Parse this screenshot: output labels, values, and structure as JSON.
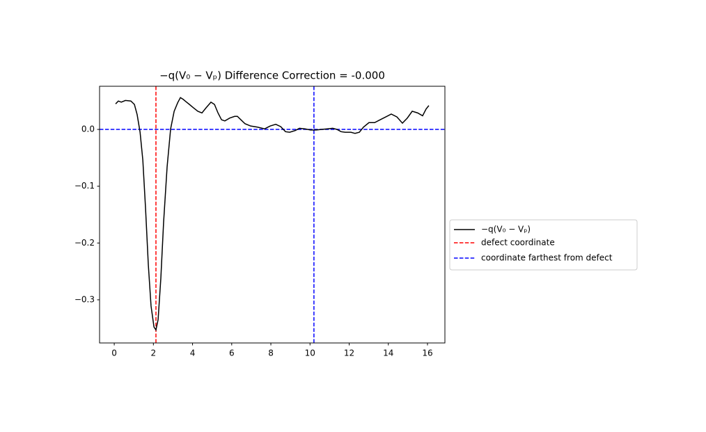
{
  "chart_data": {
    "type": "line",
    "title": "−q(V₀ − Vₚ) Difference Correction = -0.000",
    "x": [
      0.07,
      0.21,
      0.36,
      0.57,
      0.85,
      1.03,
      1.17,
      1.32,
      1.46,
      1.6,
      1.74,
      1.88,
      2.03,
      2.13,
      2.24,
      2.38,
      2.52,
      2.7,
      2.88,
      3.06,
      3.24,
      3.38,
      3.52,
      3.66,
      3.84,
      4.05,
      4.27,
      4.48,
      4.69,
      4.94,
      5.12,
      5.3,
      5.48,
      5.65,
      5.9,
      6.15,
      6.29,
      6.47,
      6.68,
      6.97,
      7.32,
      7.68,
      7.96,
      8.25,
      8.5,
      8.75,
      8.96,
      9.24,
      9.46,
      9.74,
      10.03,
      10.31,
      10.6,
      10.88,
      11.16,
      11.38,
      11.59,
      11.8,
      12.09,
      12.3,
      12.52,
      12.73,
      13.01,
      13.3,
      13.58,
      13.87,
      14.15,
      14.44,
      14.72,
      14.97,
      15.22,
      15.5,
      15.75,
      15.93,
      16.07
    ],
    "series": [
      {
        "name": "−q(V₀ − Vₚ)",
        "color": "#000000",
        "values": [
          0.045,
          0.05,
          0.048,
          0.051,
          0.05,
          0.044,
          0.026,
          -0.005,
          -0.054,
          -0.14,
          -0.238,
          -0.311,
          -0.348,
          -0.353,
          -0.335,
          -0.262,
          -0.164,
          -0.066,
          0.001,
          0.032,
          0.047,
          0.056,
          0.053,
          0.049,
          0.044,
          0.038,
          0.032,
          0.029,
          0.038,
          0.048,
          0.044,
          0.029,
          0.017,
          0.015,
          0.02,
          0.023,
          0.023,
          0.017,
          0.01,
          0.006,
          0.004,
          0.001,
          0.006,
          0.009,
          0.005,
          -0.004,
          -0.005,
          -0.002,
          0.002,
          0.001,
          -0.001,
          -0.001,
          0,
          0.001,
          0.002,
          0,
          -0.004,
          -0.005,
          -0.005,
          -0.007,
          -0.005,
          0.004,
          0.012,
          0.012,
          0.017,
          0.022,
          0.027,
          0.022,
          0.011,
          0.02,
          0.032,
          0.029,
          0.024,
          0.036,
          0.042
        ]
      }
    ],
    "vlines": [
      {
        "name": "defect coordinate",
        "x": 2.13,
        "color": "#ff0000"
      },
      {
        "name": "coordinate farthest from defect",
        "x": 10.2,
        "color": "#0000ff"
      }
    ],
    "hlines": [
      {
        "y": 0,
        "color": "#0000ff"
      }
    ],
    "xlim": [
      -0.75,
      16.89
    ],
    "ylim": [
      -0.376,
      0.076
    ],
    "xticks": [
      0,
      2,
      4,
      6,
      8,
      10,
      12,
      14,
      16
    ],
    "yticks": [
      {
        "value": 0,
        "label": "0.0"
      },
      {
        "value": -0.1,
        "label": "−0.1"
      },
      {
        "value": -0.2,
        "label": "−0.2"
      },
      {
        "value": -0.3,
        "label": "−0.3"
      }
    ],
    "grid": false,
    "legend": "outside right"
  }
}
